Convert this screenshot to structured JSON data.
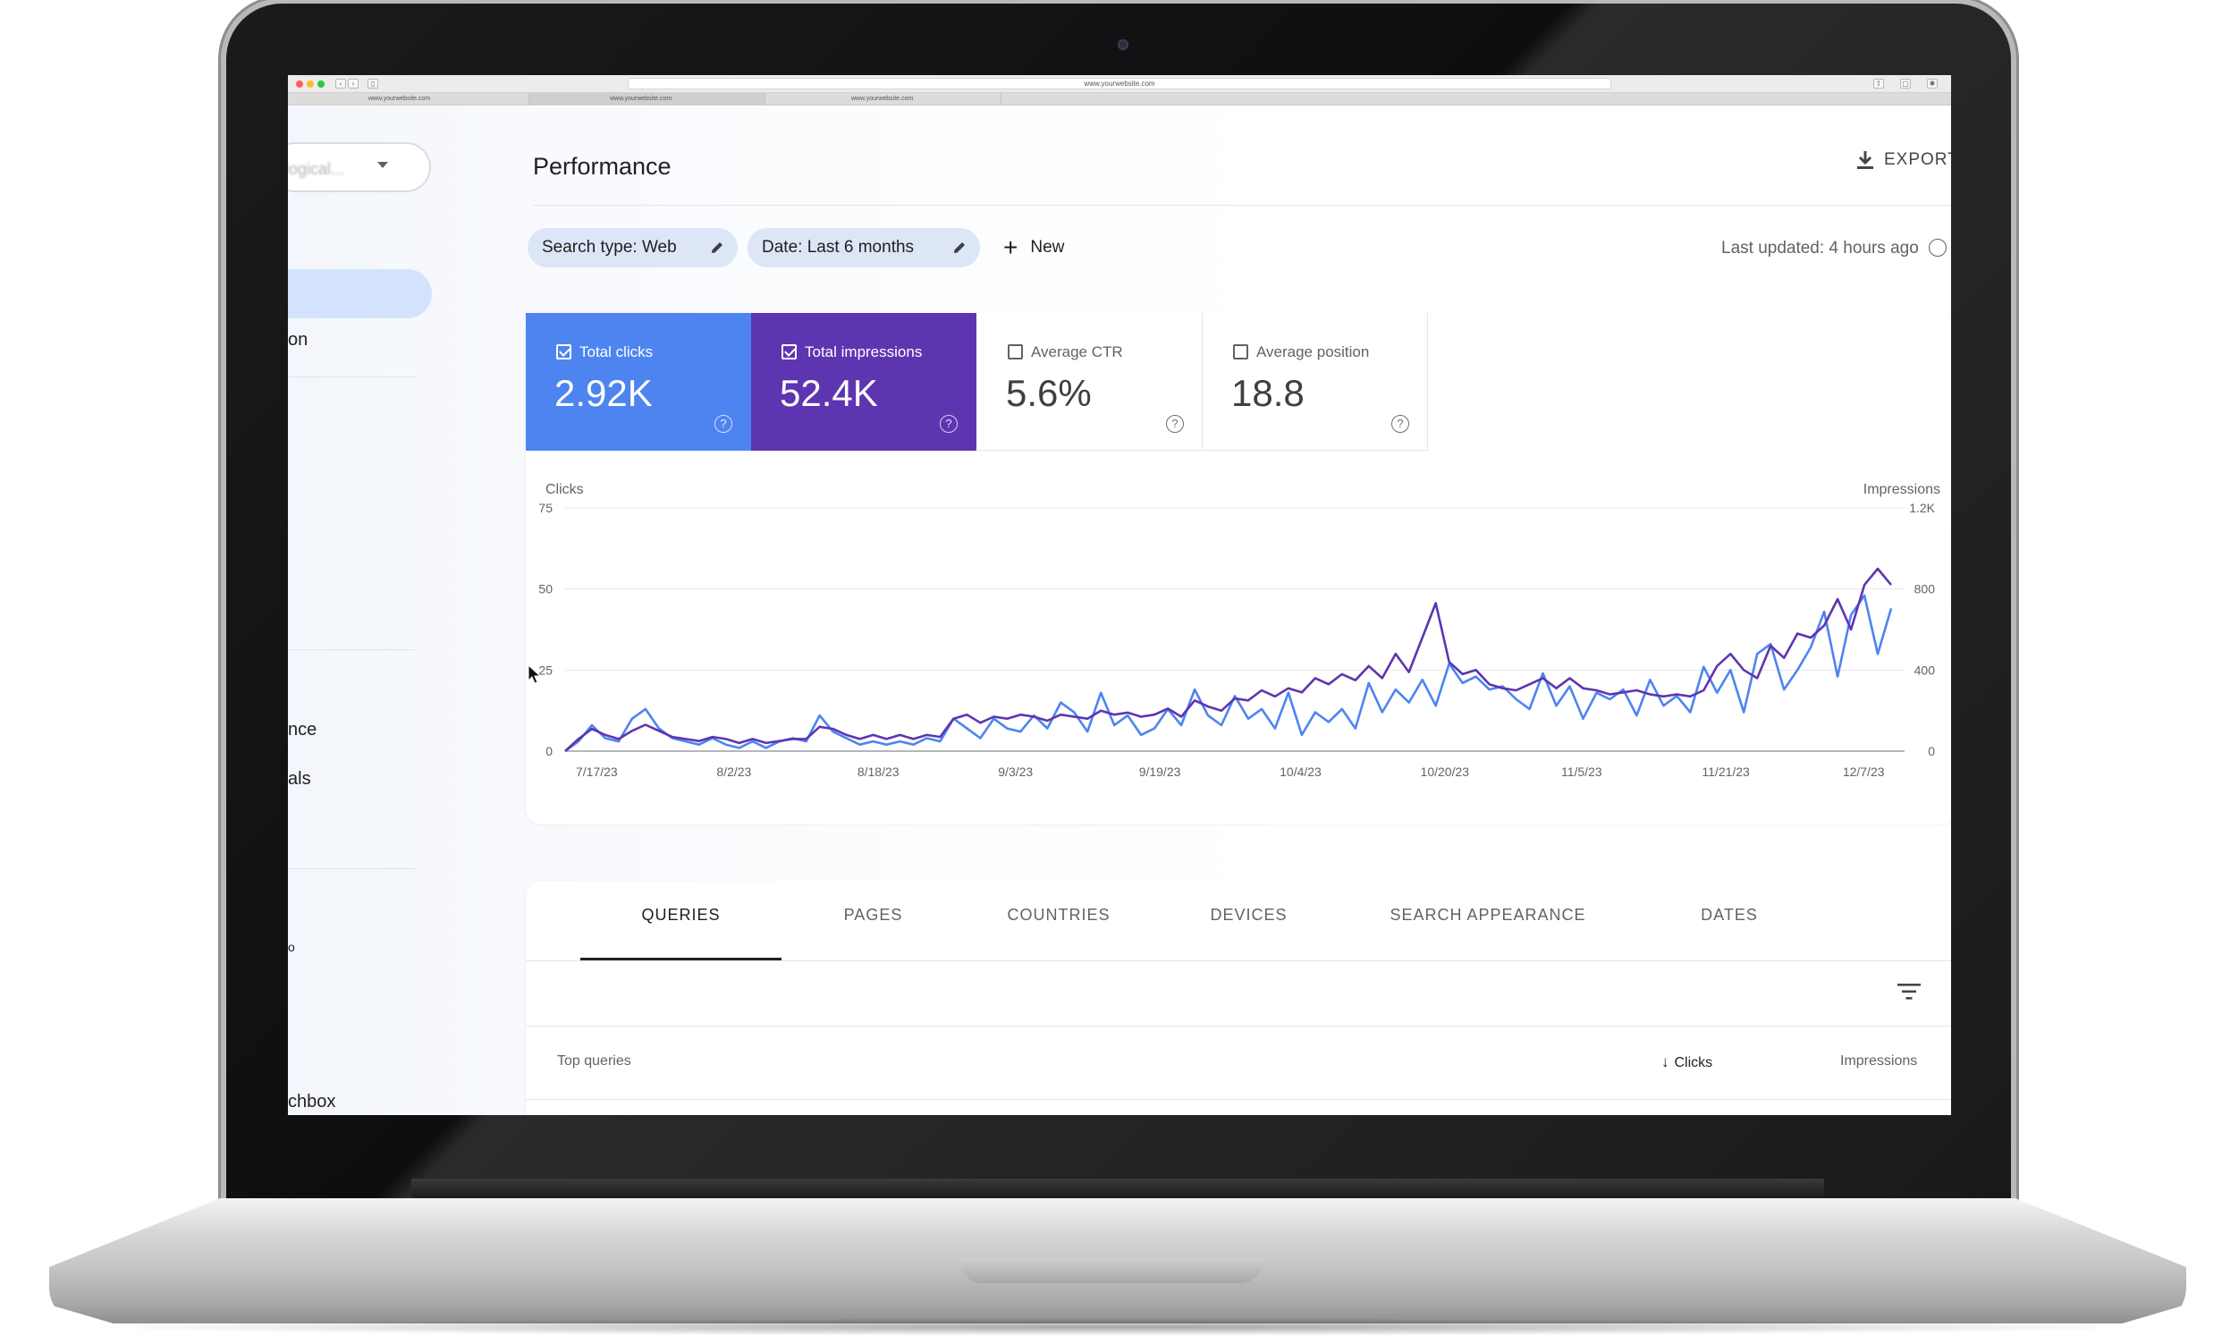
{
  "browser": {
    "url": "www.yourwebsite.com",
    "tabs": [
      "www.yourwebsite.com",
      "www.yourwebsite.com",
      "www.yourwebsite.com"
    ]
  },
  "sidebar": {
    "property_text": "...logical...",
    "items": [
      {
        "label": "on"
      },
      {
        "label": "nce"
      },
      {
        "label": "als"
      },
      {
        "label": "o"
      },
      {
        "label": "chbox"
      }
    ]
  },
  "header": {
    "title": "Performance",
    "export_label": "EXPORT",
    "last_updated": "Last updated: 4 hours ago"
  },
  "filters": {
    "search_type": "Search type: Web",
    "date": "Date: Last 6 months",
    "new_label": "New"
  },
  "metrics": {
    "clicks": {
      "label": "Total clicks",
      "value": "2.92K",
      "checked": true
    },
    "impressions": {
      "label": "Total impressions",
      "value": "52.4K",
      "checked": true
    },
    "ctr": {
      "label": "Average CTR",
      "value": "5.6%",
      "checked": false
    },
    "position": {
      "label": "Average position",
      "value": "18.8",
      "checked": false
    },
    "help_glyph": "?"
  },
  "colors": {
    "clicks": "#4d84f0",
    "impressions": "#5e35b1",
    "chip_bg": "#dde6f7",
    "sidebar_active": "#d3e3fd"
  },
  "chart_data": {
    "type": "line",
    "xlabel": "",
    "ylabel": "Clicks",
    "ylabel_right": "Impressions",
    "ylim": [
      0,
      75
    ],
    "ylim_right": [
      0,
      1200
    ],
    "y_ticks": [
      "0",
      "25",
      "50",
      "75"
    ],
    "y_ticks_right": [
      "0",
      "400",
      "800",
      "1.2K"
    ],
    "x_ticks": [
      "7/17/23",
      "8/2/23",
      "8/18/23",
      "9/3/23",
      "9/19/23",
      "10/4/23",
      "10/20/23",
      "11/5/23",
      "11/21/23",
      "12/7/23"
    ],
    "x_range": [
      0,
      100
    ],
    "series": [
      {
        "name": "Clicks",
        "axis": "left",
        "color": "#4d84f0",
        "x": [
          0,
          1,
          2,
          3,
          4,
          5,
          6,
          7,
          8,
          9,
          10,
          11,
          12,
          13,
          14,
          15,
          16,
          17,
          18,
          19,
          20,
          21,
          22,
          23,
          24,
          25,
          26,
          27,
          28,
          29,
          30,
          31,
          32,
          33,
          34,
          35,
          36,
          37,
          38,
          39,
          40,
          41,
          42,
          43,
          44,
          45,
          46,
          47,
          48,
          49,
          50,
          51,
          52,
          53,
          54,
          55,
          56,
          57,
          58,
          59,
          60,
          61,
          62,
          63,
          64,
          65,
          66,
          67,
          68,
          69,
          70,
          71,
          72,
          73,
          74,
          75,
          76,
          77,
          78,
          79,
          80,
          81,
          82,
          83,
          84,
          85,
          86,
          87,
          88,
          89,
          90,
          91,
          92,
          93,
          94,
          95,
          96,
          97,
          98,
          99
        ],
        "values": [
          0,
          3,
          8,
          4,
          3,
          10,
          13,
          7,
          4,
          3,
          2,
          4,
          2,
          1,
          3,
          1,
          3,
          4,
          3,
          11,
          6,
          4,
          2,
          3,
          2,
          3,
          2,
          4,
          3,
          10,
          7,
          4,
          10,
          7,
          6,
          11,
          7,
          15,
          12,
          6,
          18,
          8,
          11,
          5,
          7,
          13,
          8,
          19,
          11,
          8,
          17,
          10,
          13,
          7,
          18,
          5,
          12,
          9,
          13,
          7,
          21,
          12,
          19,
          15,
          22,
          14,
          27,
          21,
          23,
          19,
          20,
          16,
          13,
          24,
          14,
          20,
          10,
          18,
          16,
          19,
          11,
          22,
          14,
          17,
          12,
          26,
          18,
          25,
          12,
          30,
          33,
          19,
          25,
          32,
          43,
          23,
          42,
          48,
          30,
          44
        ]
      },
      {
        "name": "Impressions",
        "axis": "right",
        "color": "#5e35b1",
        "x": [
          0,
          1,
          2,
          3,
          4,
          5,
          6,
          7,
          8,
          9,
          10,
          11,
          12,
          13,
          14,
          15,
          16,
          17,
          18,
          19,
          20,
          21,
          22,
          23,
          24,
          25,
          26,
          27,
          28,
          29,
          30,
          31,
          32,
          33,
          34,
          35,
          36,
          37,
          38,
          39,
          40,
          41,
          42,
          43,
          44,
          45,
          46,
          47,
          48,
          49,
          50,
          51,
          52,
          53,
          54,
          55,
          56,
          57,
          58,
          59,
          60,
          61,
          62,
          63,
          64,
          65,
          66,
          67,
          68,
          69,
          70,
          71,
          72,
          73,
          74,
          75,
          76,
          77,
          78,
          79,
          80,
          81,
          82,
          83,
          84,
          85,
          86,
          87,
          88,
          89,
          90,
          91,
          92,
          93,
          94,
          95,
          96,
          97,
          98,
          99
        ],
        "values": [
          0,
          60,
          110,
          80,
          60,
          100,
          130,
          100,
          70,
          60,
          50,
          70,
          60,
          40,
          60,
          40,
          50,
          60,
          60,
          120,
          110,
          80,
          60,
          80,
          60,
          80,
          60,
          80,
          70,
          160,
          180,
          140,
          170,
          160,
          180,
          170,
          150,
          180,
          170,
          160,
          200,
          180,
          190,
          170,
          180,
          210,
          170,
          250,
          220,
          200,
          260,
          250,
          300,
          270,
          310,
          290,
          360,
          330,
          380,
          350,
          420,
          360,
          480,
          390,
          560,
          730,
          440,
          380,
          400,
          330,
          310,
          300,
          330,
          360,
          310,
          360,
          310,
          300,
          280,
          290,
          300,
          280,
          270,
          280,
          270,
          300,
          420,
          480,
          400,
          360,
          520,
          460,
          580,
          560,
          620,
          750,
          600,
          820,
          900,
          820
        ]
      }
    ]
  },
  "tabs": {
    "items": [
      "QUERIES",
      "PAGES",
      "COUNTRIES",
      "DEVICES",
      "SEARCH APPEARANCE",
      "DATES"
    ],
    "active": "QUERIES"
  },
  "table": {
    "title": "Top queries",
    "columns": [
      {
        "label": "Clicks",
        "sorted": "desc"
      },
      {
        "label": "Impressions"
      }
    ]
  }
}
